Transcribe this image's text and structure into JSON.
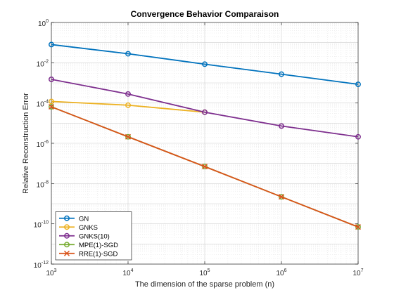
{
  "chart_data": {
    "type": "line",
    "title": "Convergence Behavior Comparaison",
    "xlabel": "The dimension of the sparse problem (n)",
    "ylabel": "Relative Reconstruction Error",
    "xscale": "log",
    "yscale": "log",
    "xlim": [
      1000,
      10000000
    ],
    "ylim": [
      1e-12,
      1
    ],
    "grid": true,
    "legend_position": "bottom-left",
    "x_ticks": [
      {
        "base": "10",
        "exp": "3"
      },
      {
        "base": "10",
        "exp": "4"
      },
      {
        "base": "10",
        "exp": "5"
      },
      {
        "base": "10",
        "exp": "6"
      },
      {
        "base": "10",
        "exp": "7"
      }
    ],
    "y_ticks": [
      {
        "base": "10",
        "exp": "0"
      },
      {
        "base": "10",
        "exp": "-2"
      },
      {
        "base": "10",
        "exp": "-4"
      },
      {
        "base": "10",
        "exp": "-6"
      },
      {
        "base": "10",
        "exp": "-8"
      },
      {
        "base": "10",
        "exp": "-10"
      },
      {
        "base": "10",
        "exp": "-12"
      }
    ],
    "series": [
      {
        "name": "GN",
        "color": "#0072BD",
        "marker": "circle",
        "x": [
          1000,
          10000,
          100000,
          1000000,
          10000000
        ],
        "y": [
          0.08,
          0.028,
          0.0085,
          0.0027,
          0.00085
        ]
      },
      {
        "name": "GNKS",
        "color": "#EDB120",
        "marker": "circle",
        "x": [
          1000,
          10000,
          100000
        ],
        "y": [
          0.00012,
          7.8e-05,
          3.5e-05
        ]
      },
      {
        "name": "GNKS(10)",
        "color": "#7E2F8E",
        "marker": "circle",
        "x": [
          1000,
          10000,
          100000,
          1000000,
          10000000
        ],
        "y": [
          0.0015,
          0.00028,
          3.5e-05,
          7.2e-06,
          2.1e-06
        ]
      },
      {
        "name": "MPE(1)-SGD",
        "color": "#77AC30",
        "marker": "circle",
        "x": [
          1000,
          10000,
          100000,
          1000000,
          10000000
        ],
        "y": [
          6.5e-05,
          2.1e-06,
          7e-08,
          2.2e-09,
          7e-11
        ]
      },
      {
        "name": "RRE(1)-SGD",
        "color": "#D95319",
        "marker": "x",
        "x": [
          1000,
          10000,
          100000,
          1000000,
          10000000
        ],
        "y": [
          6.5e-05,
          2.1e-06,
          7e-08,
          2.2e-09,
          7e-11
        ]
      }
    ]
  }
}
